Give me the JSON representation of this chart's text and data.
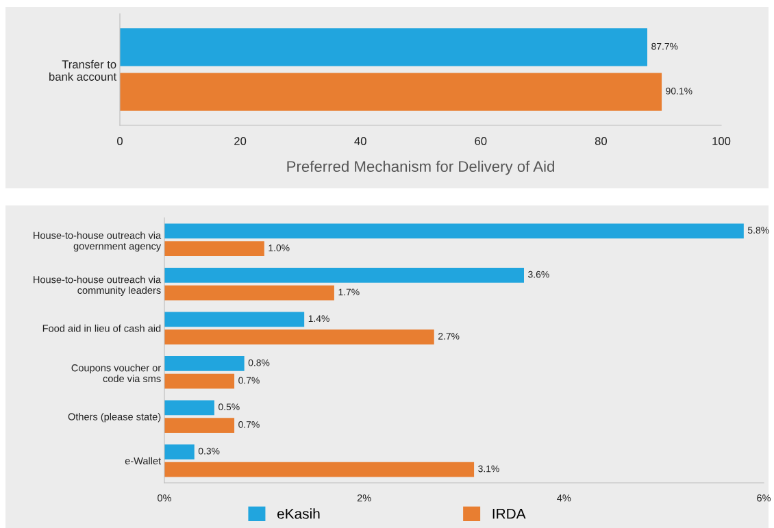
{
  "chart_data": [
    {
      "type": "bar",
      "orientation": "horizontal",
      "xlabel": "Preferred Mechanism for Delivery of Aid",
      "categories": [
        "Transfer to\nbank account"
      ],
      "series": [
        {
          "color": "#21a5de",
          "values": [
            87.7
          ],
          "value_labels": [
            "87.7%"
          ]
        },
        {
          "color": "#e87e31",
          "values": [
            90.1
          ],
          "value_labels": [
            "90.1%"
          ]
        }
      ],
      "xlim": [
        0,
        100
      ],
      "xticks": [
        0,
        20,
        40,
        60,
        80,
        100
      ],
      "grid": false,
      "legend": false
    },
    {
      "type": "bar",
      "orientation": "horizontal",
      "categories": [
        "House-to-house outreach via\ngovernment agency",
        "House-to-house outreach via\ncommunity leaders",
        "Food aid in lieu of cash aid",
        "Coupons voucher or\ncode via sms",
        "Others (please state)",
        "e-Wallet"
      ],
      "series": [
        {
          "name": "eKasih",
          "color": "#21a5de",
          "values": [
            5.8,
            3.6,
            1.4,
            0.8,
            0.5,
            0.3
          ],
          "value_labels": [
            "5.8%",
            "3.6%",
            "1.4%",
            "0.8%",
            "0.5%",
            "0.3%"
          ]
        },
        {
          "name": "IRDA",
          "color": "#e87e31",
          "values": [
            1.0,
            1.7,
            2.7,
            0.7,
            0.7,
            3.1
          ],
          "value_labels": [
            "1.0%",
            "1.7%",
            "2.7%",
            "0.7%",
            "0.7%",
            "3.1%"
          ]
        }
      ],
      "xlim": [
        0,
        6
      ],
      "xticks": [
        {
          "value": 0,
          "label": "0%"
        },
        {
          "value": 2,
          "label": "2%"
        },
        {
          "value": 4,
          "label": "4%"
        },
        {
          "value": 6,
          "label": "6%"
        }
      ],
      "grid": false,
      "legend": "bottom"
    }
  ]
}
